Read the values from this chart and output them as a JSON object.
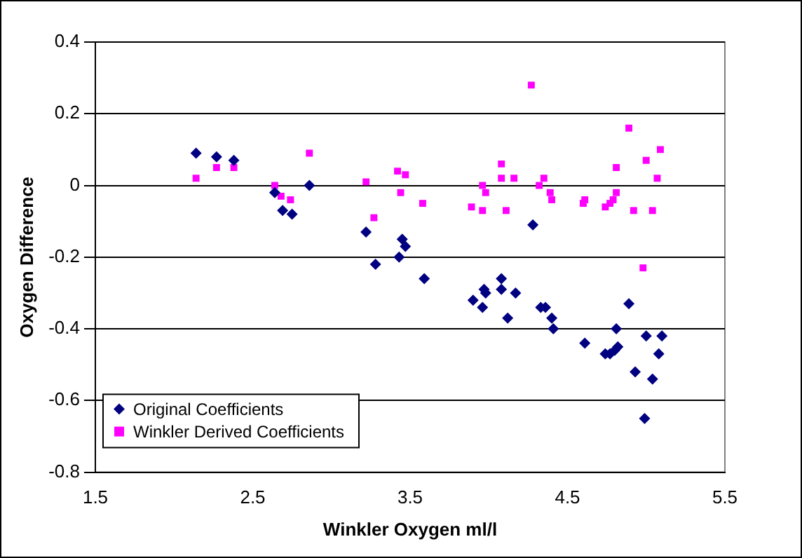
{
  "chart_data": {
    "type": "scatter",
    "xlabel": "Winkler Oxygen ml/l",
    "ylabel": "Oxygen Difference",
    "xlim": [
      1.5,
      5.5
    ],
    "xticks": [
      1.5,
      2.5,
      3.5,
      4.5,
      5.5
    ],
    "ylim": [
      -0.8,
      0.4
    ],
    "yticks": [
      -0.8,
      -0.6,
      -0.4,
      -0.2,
      0,
      0.2,
      0.4
    ],
    "grid": "y",
    "legend": "bottom left",
    "series": [
      {
        "name": "Original Coefficients",
        "color": "#000080",
        "marker": "diamond",
        "x": [
          2.14,
          2.27,
          2.38,
          2.64,
          2.69,
          2.75,
          2.86,
          3.22,
          3.28,
          3.43,
          3.45,
          3.47,
          3.59,
          3.9,
          3.96,
          3.97,
          3.98,
          4.08,
          4.08,
          4.12,
          4.17,
          4.28,
          4.33,
          4.36,
          4.4,
          4.41,
          4.61,
          4.74,
          4.77,
          4.8,
          4.82,
          4.81,
          4.89,
          4.93,
          4.99,
          5.0,
          5.04,
          5.08,
          5.1
        ],
        "values": [
          0.09,
          0.08,
          0.07,
          -0.02,
          -0.07,
          -0.08,
          0.0,
          -0.13,
          -0.22,
          -0.2,
          -0.15,
          -0.17,
          -0.26,
          -0.32,
          -0.34,
          -0.29,
          -0.3,
          -0.26,
          -0.29,
          -0.37,
          -0.3,
          -0.11,
          -0.34,
          -0.34,
          -0.37,
          -0.4,
          -0.44,
          -0.47,
          -0.47,
          -0.46,
          -0.45,
          -0.4,
          -0.33,
          -0.52,
          -0.65,
          -0.42,
          -0.54,
          -0.47,
          -0.42
        ]
      },
      {
        "name": "Winkler Derived Coefficients",
        "color": "#ff00ff",
        "marker": "square",
        "x": [
          2.14,
          2.27,
          2.38,
          2.64,
          2.68,
          2.74,
          2.86,
          3.22,
          3.27,
          3.42,
          3.44,
          3.47,
          3.58,
          3.89,
          3.96,
          3.96,
          3.98,
          4.08,
          4.08,
          4.11,
          4.16,
          4.27,
          4.32,
          4.35,
          4.39,
          4.4,
          4.6,
          4.61,
          4.74,
          4.77,
          4.79,
          4.81,
          4.81,
          4.89,
          4.92,
          4.98,
          5.0,
          5.04,
          5.07,
          5.09
        ],
        "values": [
          0.02,
          0.05,
          0.05,
          0.0,
          -0.03,
          -0.04,
          0.09,
          0.01,
          -0.09,
          0.04,
          -0.02,
          0.03,
          -0.05,
          -0.06,
          -0.07,
          0.0,
          -0.02,
          0.06,
          0.02,
          -0.07,
          0.02,
          0.28,
          0.0,
          0.02,
          -0.02,
          -0.04,
          -0.05,
          -0.04,
          -0.06,
          -0.05,
          -0.04,
          -0.02,
          0.05,
          0.16,
          -0.07,
          -0.23,
          0.07,
          -0.07,
          0.02,
          0.1
        ]
      }
    ]
  }
}
